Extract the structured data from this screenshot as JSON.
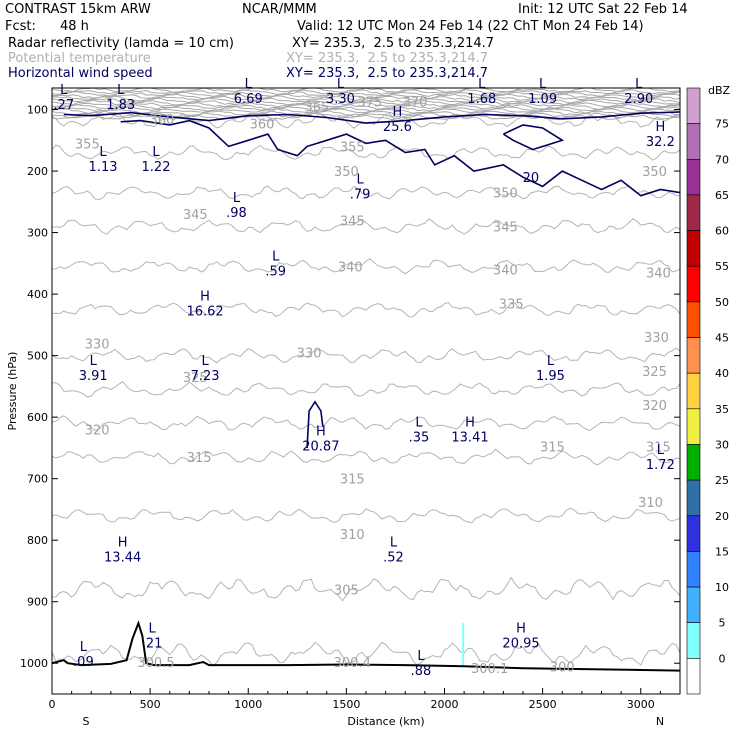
{
  "header": {
    "model": "CONTRAST 15km ARW",
    "org": "NCAR/MMM",
    "init": "Init: 12 UTC Sat 22 Feb 14",
    "fcst_label": "Fcst:",
    "fcst_value": "48 h",
    "valid": "Valid: 12 UTC Mon 24 Feb 14 (22 ChT Mon 24 Feb 14)",
    "fields": [
      {
        "name": "Radar reflectivity (lamda = 10 cm)",
        "xy": "XY= 235.3,  2.5 to 235.3,214.7"
      },
      {
        "name": "Potential temperature",
        "xy": "XY= 235.3,  2.5 to 235.3,214.7"
      },
      {
        "name": "Horizontal wind speed",
        "xy": "XY= 235.3,  2.5 to 235.3,214.7"
      }
    ]
  },
  "chart_data": {
    "type": "cross-section",
    "xlabel": "Distance (km)",
    "ylabel": "Pressure (hPa)",
    "xlim": [
      0,
      3200
    ],
    "ylim": [
      1050,
      65
    ],
    "x_ticks": [
      0,
      500,
      1000,
      1500,
      2000,
      2500,
      3000
    ],
    "y_ticks": [
      100,
      200,
      300,
      400,
      500,
      600,
      700,
      800,
      900,
      1000
    ],
    "x_end_labels": {
      "left": "S",
      "right": "N"
    },
    "colorbar": {
      "unit": "dBZ",
      "levels": [
        {
          "value": "75",
          "color": "#d0a0d0"
        },
        {
          "value": "70",
          "color": "#b070b8"
        },
        {
          "value": "65",
          "color": "#983098"
        },
        {
          "value": "60",
          "color": "#a02848"
        },
        {
          "value": "55",
          "color": "#c00000"
        },
        {
          "value": "50",
          "color": "#ff0000"
        },
        {
          "value": "45",
          "color": "#ff5000"
        },
        {
          "value": "40",
          "color": "#ff9050"
        },
        {
          "value": "35",
          "color": "#ffd040"
        },
        {
          "value": "30",
          "color": "#f0f040"
        },
        {
          "value": "25",
          "color": "#00b000"
        },
        {
          "value": "20",
          "color": "#3070a8"
        },
        {
          "value": "15",
          "color": "#3030e0"
        },
        {
          "value": "10",
          "color": "#3080ff"
        },
        {
          "value": "5",
          "color": "#40b0ff"
        },
        {
          "value": "0",
          "color": "#80ffff"
        },
        {
          "value": "",
          "color": "#ffffff"
        }
      ]
    },
    "theta_contours": [
      {
        "value": 300,
        "p": 985
      },
      {
        "value": 305,
        "p": 880
      },
      {
        "value": 310,
        "p": 760
      },
      {
        "value": 315,
        "p": 665
      },
      {
        "value": 320,
        "p": 610
      },
      {
        "value": 325,
        "p": 555
      },
      {
        "value": 330,
        "p": 500
      },
      {
        "value": 335,
        "p": 425
      },
      {
        "value": 340,
        "p": 355
      },
      {
        "value": 345,
        "p": 290
      },
      {
        "value": 350,
        "p": 235
      },
      {
        "value": 355,
        "p": 170
      },
      {
        "value": 360,
        "p": 118
      }
    ],
    "theta_labels": [
      {
        "text": "300.5",
        "x": 530,
        "p": 998
      },
      {
        "text": "300.4",
        "x": 1530,
        "p": 998
      },
      {
        "text": "300.1",
        "x": 2230,
        "p": 1008
      },
      {
        "text": "300",
        "x": 2600,
        "p": 1005
      },
      {
        "text": "305",
        "x": 1500,
        "p": 880
      },
      {
        "text": "310",
        "x": 1530,
        "p": 790
      },
      {
        "text": "310",
        "x": 3050,
        "p": 738
      },
      {
        "text": "315",
        "x": 750,
        "p": 665
      },
      {
        "text": "315",
        "x": 1530,
        "p": 700
      },
      {
        "text": "315",
        "x": 2550,
        "p": 648
      },
      {
        "text": "315",
        "x": 3090,
        "p": 648
      },
      {
        "text": "320",
        "x": 230,
        "p": 620
      },
      {
        "text": "320",
        "x": 3070,
        "p": 580
      },
      {
        "text": "325",
        "x": 730,
        "p": 535
      },
      {
        "text": "325",
        "x": 3070,
        "p": 525
      },
      {
        "text": "330",
        "x": 230,
        "p": 480
      },
      {
        "text": "330",
        "x": 1310,
        "p": 495
      },
      {
        "text": "330",
        "x": 3080,
        "p": 470
      },
      {
        "text": "335",
        "x": 2340,
        "p": 415
      },
      {
        "text": "340",
        "x": 1520,
        "p": 355
      },
      {
        "text": "340",
        "x": 2310,
        "p": 360
      },
      {
        "text": "340",
        "x": 3090,
        "p": 365
      },
      {
        "text": "345",
        "x": 730,
        "p": 270
      },
      {
        "text": "345",
        "x": 1530,
        "p": 280
      },
      {
        "text": "345",
        "x": 2310,
        "p": 290
      },
      {
        "text": "350",
        "x": 1500,
        "p": 200
      },
      {
        "text": "350",
        "x": 2310,
        "p": 235
      },
      {
        "text": "350",
        "x": 3070,
        "p": 200
      },
      {
        "text": "355",
        "x": 180,
        "p": 155
      },
      {
        "text": "355",
        "x": 1530,
        "p": 160
      },
      {
        "text": "360",
        "x": 560,
        "p": 115
      },
      {
        "text": "360",
        "x": 1070,
        "p": 123
      },
      {
        "text": "365",
        "x": 1350,
        "p": 95
      },
      {
        "text": "375",
        "x": 1620,
        "p": 87
      },
      {
        "text": "370",
        "x": 1850,
        "p": 87
      }
    ],
    "extrema": [
      {
        "kind": "L",
        "value": ".27",
        "x": 60,
        "p": 80
      },
      {
        "kind": "L",
        "value": "1.83",
        "x": 350,
        "p": 80
      },
      {
        "kind": "L",
        "value": "6.69",
        "x": 1000,
        "p": 70
      },
      {
        "kind": "L",
        "value": "3.30",
        "x": 1470,
        "p": 70
      },
      {
        "kind": "L",
        "value": "1.68",
        "x": 2190,
        "p": 70
      },
      {
        "kind": "L",
        "value": "1.09",
        "x": 2500,
        "p": 70
      },
      {
        "kind": "L",
        "value": "2.90",
        "x": 2990,
        "p": 70
      },
      {
        "kind": "H",
        "value": "25.6",
        "x": 1760,
        "p": 115
      },
      {
        "kind": "H",
        "value": "32.2",
        "x": 3100,
        "p": 140
      },
      {
        "kind": "L",
        "value": "1.13",
        "x": 260,
        "p": 180
      },
      {
        "kind": "L",
        "value": "1.22",
        "x": 530,
        "p": 180
      },
      {
        "kind": "L",
        "value": ".79",
        "x": 1570,
        "p": 225
      },
      {
        "kind": "L",
        "value": ".98",
        "x": 940,
        "p": 255
      },
      {
        "kind": "L",
        "value": ".59",
        "x": 1140,
        "p": 350
      },
      {
        "kind": "H",
        "value": "16.62",
        "x": 780,
        "p": 415
      },
      {
        "kind": "L",
        "value": "3.91",
        "x": 210,
        "p": 520
      },
      {
        "kind": "L",
        "value": "7.23",
        "x": 780,
        "p": 520
      },
      {
        "kind": "L",
        "value": "1.95",
        "x": 2540,
        "p": 520
      },
      {
        "kind": "L",
        "value": ".35",
        "x": 1870,
        "p": 620
      },
      {
        "kind": "H",
        "value": "13.41",
        "x": 2130,
        "p": 620
      },
      {
        "kind": "H",
        "value": "20.87",
        "x": 1370,
        "p": 635
      },
      {
        "kind": "L",
        "value": "1.72",
        "x": 3100,
        "p": 665
      },
      {
        "kind": "H",
        "value": "13.44",
        "x": 360,
        "p": 815
      },
      {
        "kind": "L",
        "value": ".52",
        "x": 1740,
        "p": 815
      },
      {
        "kind": "H",
        "value": "20.95",
        "x": 2390,
        "p": 955
      },
      {
        "kind": "L",
        "value": ".21",
        "x": 510,
        "p": 955
      },
      {
        "kind": "L",
        "value": ".09",
        "x": 160,
        "p": 985
      },
      {
        "kind": "L",
        "value": ".88",
        "x": 1880,
        "p": 1000
      }
    ],
    "wind_contour_labels": [
      {
        "text": "20",
        "x": 2440,
        "p": 210
      }
    ],
    "terrain": [
      [
        0,
        1000
      ],
      [
        60,
        995
      ],
      [
        80,
        1000
      ],
      [
        150,
        1003
      ],
      [
        300,
        1001
      ],
      [
        380,
        995
      ],
      [
        410,
        960
      ],
      [
        440,
        935
      ],
      [
        460,
        955
      ],
      [
        480,
        1000
      ],
      [
        520,
        1003
      ],
      [
        700,
        1003
      ],
      [
        770,
        998
      ],
      [
        800,
        1003
      ],
      [
        1200,
        1003
      ],
      [
        1500,
        1002
      ],
      [
        1800,
        1003
      ],
      [
        2100,
        1005
      ],
      [
        2400,
        1008
      ],
      [
        2800,
        1010
      ],
      [
        3200,
        1012
      ]
    ],
    "reflectivity_marks": [
      {
        "x": 2095,
        "p_top": 935,
        "p_bottom": 1005,
        "color": "#80ffff"
      }
    ]
  }
}
